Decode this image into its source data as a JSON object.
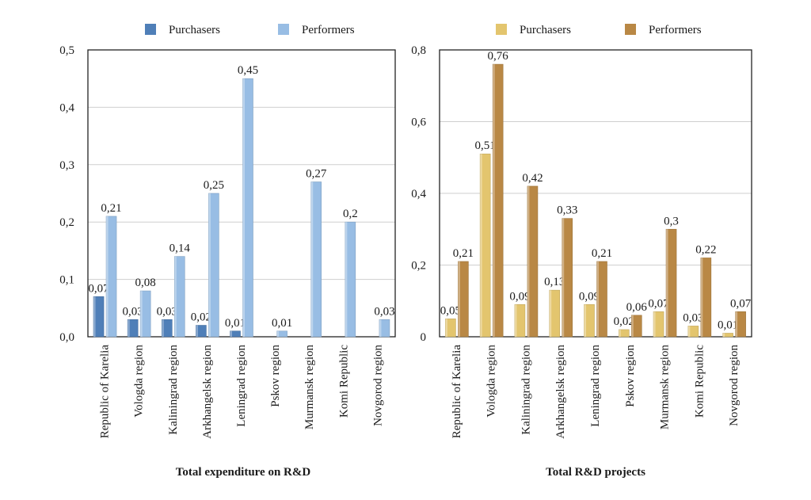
{
  "chart_data": [
    {
      "type": "bar",
      "title": "Total expenditure on R&D",
      "categories": [
        "Republic of Karelia",
        "Vologda region",
        "Kaliningrad region",
        "Arkhangelsk region",
        "Leningrad region",
        "Pskov region",
        "Murmansk region",
        "Komi Republic",
        "Novgorod region"
      ],
      "series": [
        {
          "name": "Purchasers",
          "color": "#4f7fb8",
          "values": [
            0.07,
            0.03,
            0.03,
            0.02,
            0.01,
            null,
            null,
            null,
            null
          ],
          "labels": [
            "0,07",
            "0,03",
            "0,03",
            "0,02",
            "0,01",
            "",
            "",
            "",
            ""
          ]
        },
        {
          "name": "Performers",
          "color": "#98bde4",
          "values": [
            0.21,
            0.08,
            0.14,
            0.25,
            0.45,
            0.01,
            0.27,
            0.2,
            0.03
          ],
          "labels": [
            "0,21",
            "0,08",
            "0,14",
            "0,25",
            "0,45",
            "0,01",
            "0,27",
            "0,2",
            "0,03"
          ]
        }
      ],
      "ylim": [
        0,
        0.5
      ],
      "yticks": [
        0,
        0.1,
        0.2,
        0.3,
        0.4,
        0.5
      ],
      "ytick_labels": [
        "0,0",
        "0,1",
        "0,2",
        "0,3",
        "0,4",
        "0,5"
      ],
      "grid": true,
      "legend": "top"
    },
    {
      "type": "bar",
      "title": "Total R&D projects",
      "categories": [
        "Republic of Karelia",
        "Vologda region",
        "Kaliningrad region",
        "Arkhangelsk region",
        "Leningrad region",
        "Pskov region",
        "Murmansk region",
        "Komi Republic",
        "Novgorod region"
      ],
      "series": [
        {
          "name": "Purchasers",
          "color": "#e3c56e",
          "values": [
            0.05,
            0.51,
            0.09,
            0.13,
            0.09,
            0.02,
            0.07,
            0.03,
            0.01
          ],
          "labels": [
            "0,05",
            "0,51",
            "0,09",
            "0,13",
            "0,09",
            "0,02",
            "0,07",
            "0,03",
            "0,01"
          ]
        },
        {
          "name": "Performers",
          "color": "#b98845",
          "values": [
            0.21,
            0.76,
            0.42,
            0.33,
            0.21,
            0.06,
            0.3,
            0.22,
            0.07
          ],
          "labels": [
            "0,21",
            "0,76",
            "0,42",
            "0,33",
            "0,21",
            "0,06",
            "0,3",
            "0,22",
            "0,07"
          ]
        }
      ],
      "ylim": [
        0,
        0.8
      ],
      "yticks": [
        0,
        0.2,
        0.4,
        0.6,
        0.8
      ],
      "ytick_labels": [
        "0",
        "0,2",
        "0,4",
        "0,6",
        "0,8"
      ],
      "grid": true,
      "legend": "top"
    }
  ]
}
